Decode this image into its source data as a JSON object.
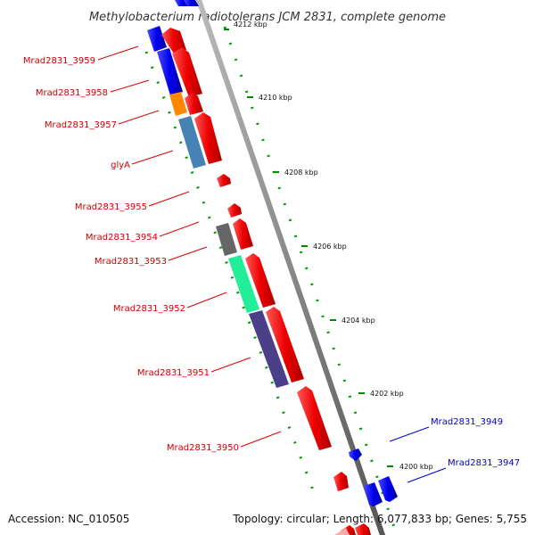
{
  "title": "Methylobacterium radiotolerans JCM 2831, complete genome",
  "footer": {
    "accession": "Accession: NC_010505",
    "topology": "Topology: circular; Length: 6,077,833 bp; Genes: 5,755"
  },
  "colors": {
    "forward_gene": "#ee0000",
    "reverse_gene": "#0000ee",
    "backbone": "#888888",
    "tick_dots": "#009900",
    "label_forward": "#cc0000",
    "label_reverse": "#0000cc"
  },
  "ruler": {
    "ticks": [
      "4212 kbp",
      "4210 kbp",
      "4208 kbp",
      "4206 kbp",
      "4204 kbp",
      "4202 kbp",
      "4200 kbp"
    ]
  },
  "gene_labels": {
    "left": [
      "Mrad2831_3959",
      "Mrad2831_3958",
      "Mrad2831_3957",
      "glyA",
      "Mrad2831_3955",
      "Mrad2831_3954",
      "Mrad2831_3953",
      "Mrad2831_3952",
      "Mrad2831_3951",
      "Mrad2831_3950"
    ],
    "right": [
      "Mrad2831_3949",
      "Mrad2831_3947"
    ]
  }
}
